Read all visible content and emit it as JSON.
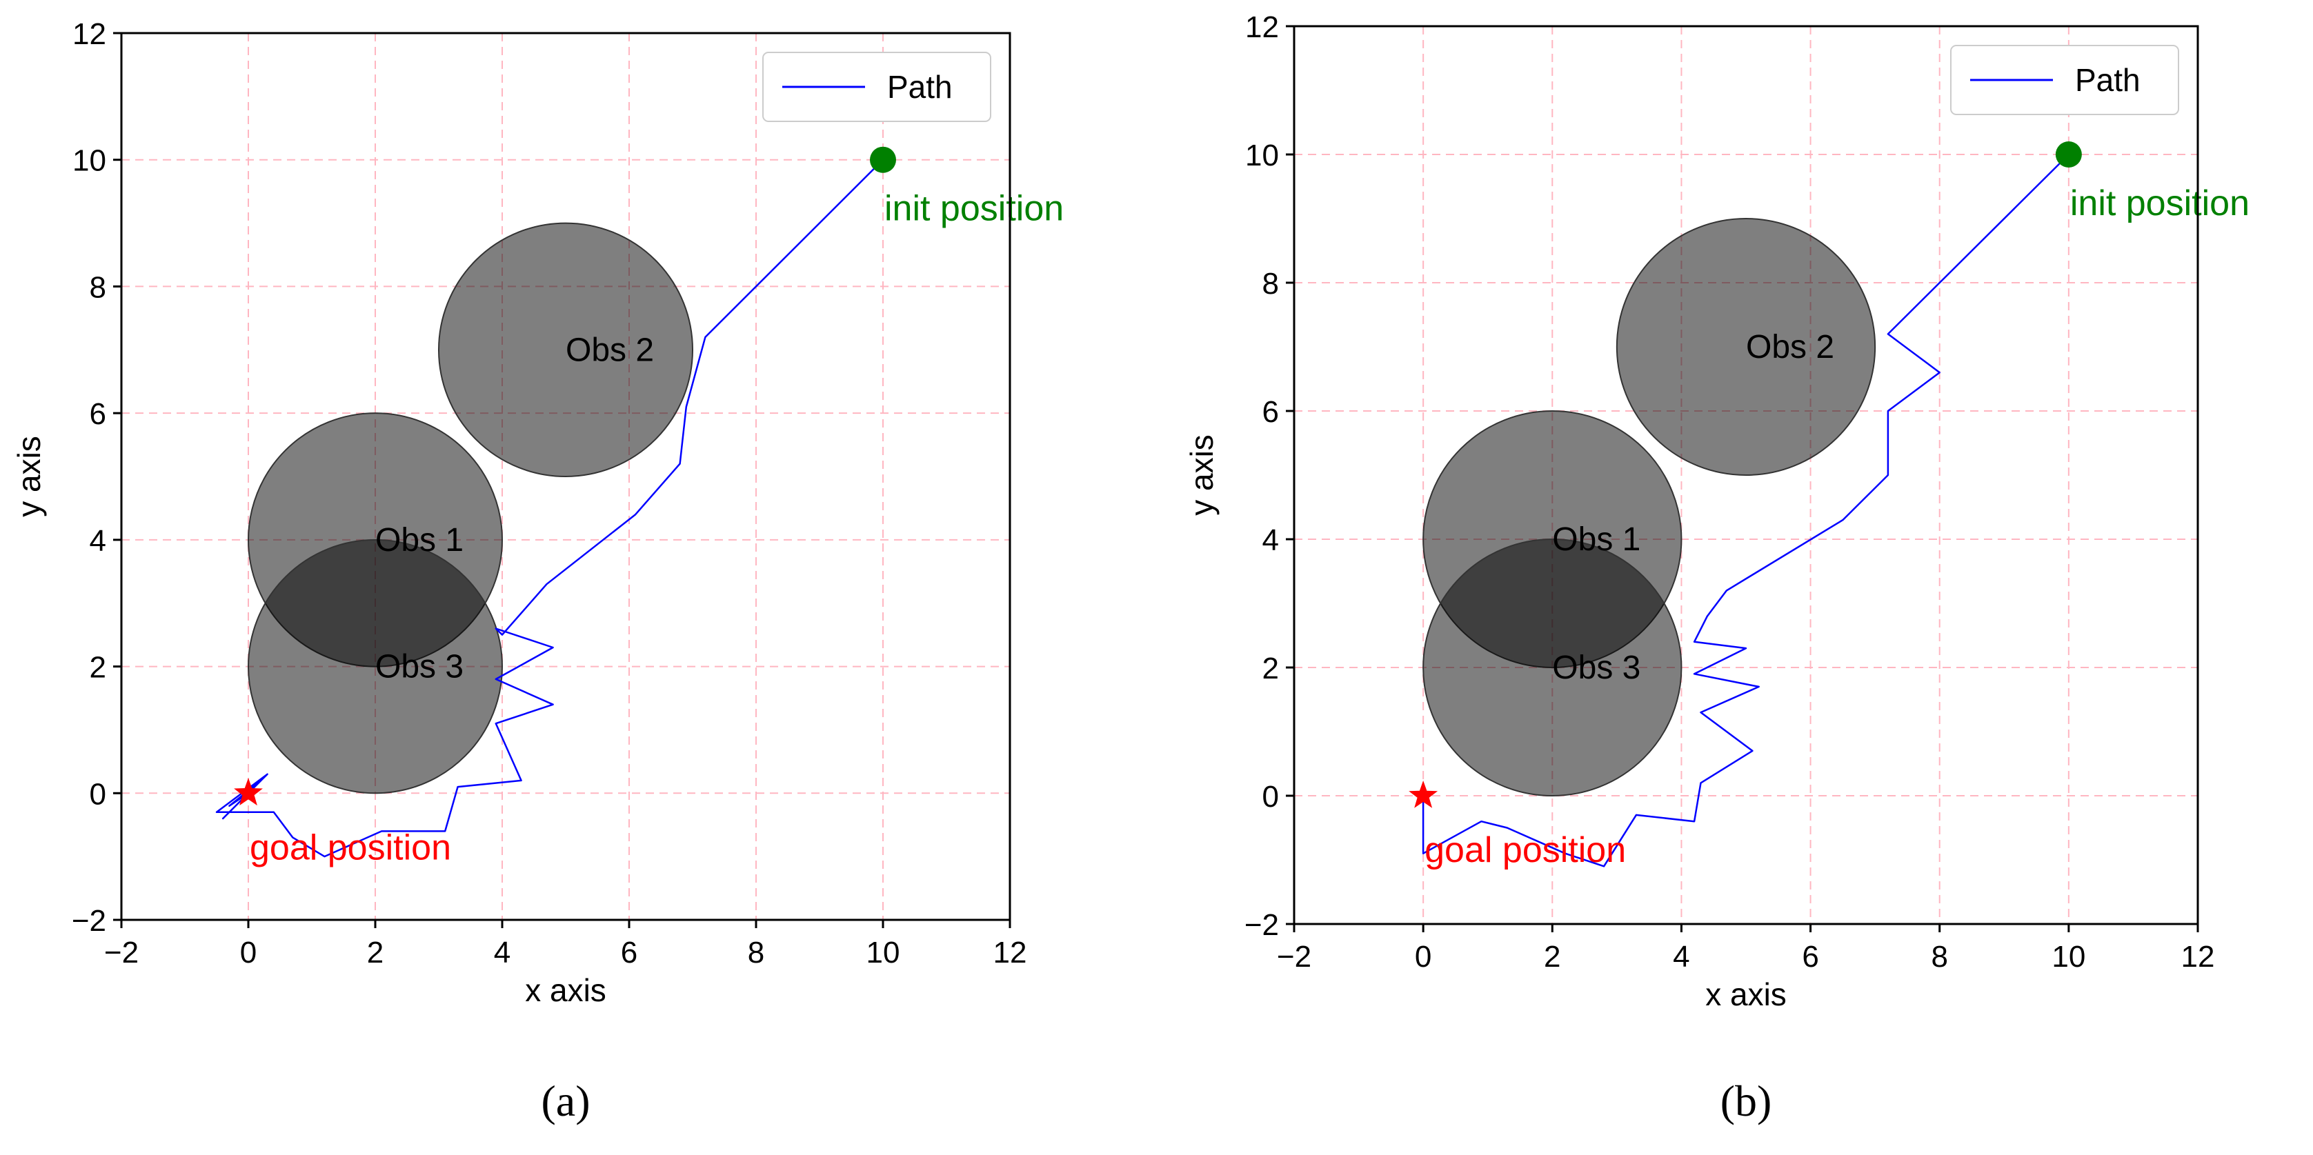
{
  "chart_data": [
    {
      "type": "line",
      "panel_label": "(a)",
      "xlabel": "x axis",
      "ylabel": "y axis",
      "xlim": [
        -2,
        12
      ],
      "ylim": [
        -2,
        12
      ],
      "xticks": [
        -2,
        0,
        2,
        4,
        6,
        8,
        10,
        12
      ],
      "yticks": [
        -2,
        0,
        2,
        4,
        6,
        8,
        10,
        12
      ],
      "tick_labels_x": [
        "−2",
        "0",
        "2",
        "4",
        "6",
        "8",
        "10",
        "12"
      ],
      "tick_labels_y": [
        "−2",
        "0",
        "2",
        "4",
        "6",
        "8",
        "10",
        "12"
      ],
      "grid": true,
      "legend": {
        "position": "top-right",
        "entries": [
          {
            "label": "Path",
            "color": "#0000ff"
          }
        ]
      },
      "obstacles": [
        {
          "name": "Obs 1",
          "x": 2,
          "y": 4,
          "r": 2
        },
        {
          "name": "Obs 2",
          "x": 5,
          "y": 7,
          "r": 2
        },
        {
          "name": "Obs 3",
          "x": 2,
          "y": 2,
          "r": 2
        }
      ],
      "init": {
        "label": "init position",
        "x": 10,
        "y": 10,
        "color": "#008000"
      },
      "goal": {
        "label": "goal position",
        "x": 0,
        "y": 0,
        "color": "#ff0000"
      },
      "series": [
        {
          "name": "Path",
          "color": "#0000ff",
          "x": [
            10,
            7.2,
            6.9,
            6.8,
            6.1,
            4.7,
            4.0,
            3.9,
            4.8,
            3.9,
            4.8,
            3.9,
            4.3,
            3.3,
            3.1,
            2.1,
            1.2,
            0.7,
            0.4,
            0.0,
            -0.5,
            0.3,
            -0.4,
            0.2,
            -0.3,
            0.0
          ],
          "y": [
            10,
            7.2,
            6.1,
            5.2,
            4.4,
            3.3,
            2.5,
            2.6,
            2.3,
            1.8,
            1.4,
            1.1,
            0.2,
            0.1,
            -0.6,
            -0.6,
            -1.0,
            -0.7,
            -0.3,
            -0.3,
            -0.3,
            0.3,
            -0.4,
            0.2,
            -0.2,
            0.0
          ]
        }
      ]
    },
    {
      "type": "line",
      "panel_label": "(b)",
      "xlabel": "x axis",
      "ylabel": "y axis",
      "xlim": [
        -2,
        12
      ],
      "ylim": [
        -2,
        12
      ],
      "xticks": [
        -2,
        0,
        2,
        4,
        6,
        8,
        10,
        12
      ],
      "yticks": [
        -2,
        0,
        2,
        4,
        6,
        8,
        10,
        12
      ],
      "tick_labels_x": [
        "−2",
        "0",
        "2",
        "4",
        "6",
        "8",
        "10",
        "12"
      ],
      "tick_labels_y": [
        "−2",
        "0",
        "2",
        "4",
        "6",
        "8",
        "10",
        "12"
      ],
      "grid": true,
      "legend": {
        "position": "top-right",
        "entries": [
          {
            "label": "Path",
            "color": "#0000ff"
          }
        ]
      },
      "obstacles": [
        {
          "name": "Obs 1",
          "x": 2,
          "y": 4,
          "r": 2
        },
        {
          "name": "Obs 2",
          "x": 5,
          "y": 7,
          "r": 2
        },
        {
          "name": "Obs 3",
          "x": 2,
          "y": 2,
          "r": 2
        }
      ],
      "init": {
        "label": "init position",
        "x": 10,
        "y": 10,
        "color": "#008000"
      },
      "goal": {
        "label": "goal position",
        "x": 0,
        "y": 0,
        "color": "#ff0000"
      },
      "series": [
        {
          "name": "Path",
          "color": "#0000ff",
          "x": [
            10,
            7.2,
            8.0,
            7.2,
            7.2,
            6.5,
            4.7,
            4.4,
            4.2,
            5.0,
            4.2,
            5.2,
            4.3,
            5.1,
            4.3,
            4.2,
            3.3,
            2.8,
            2.2,
            1.3,
            0.9,
            0.0,
            0.0,
            0.0
          ],
          "y": [
            10,
            7.2,
            6.6,
            6.0,
            5.0,
            4.3,
            3.2,
            2.8,
            2.4,
            2.3,
            1.9,
            1.7,
            1.3,
            0.7,
            0.2,
            -0.4,
            -0.3,
            -1.1,
            -0.9,
            -0.5,
            -0.4,
            -0.9,
            -0.5,
            0.0
          ]
        }
      ]
    }
  ]
}
